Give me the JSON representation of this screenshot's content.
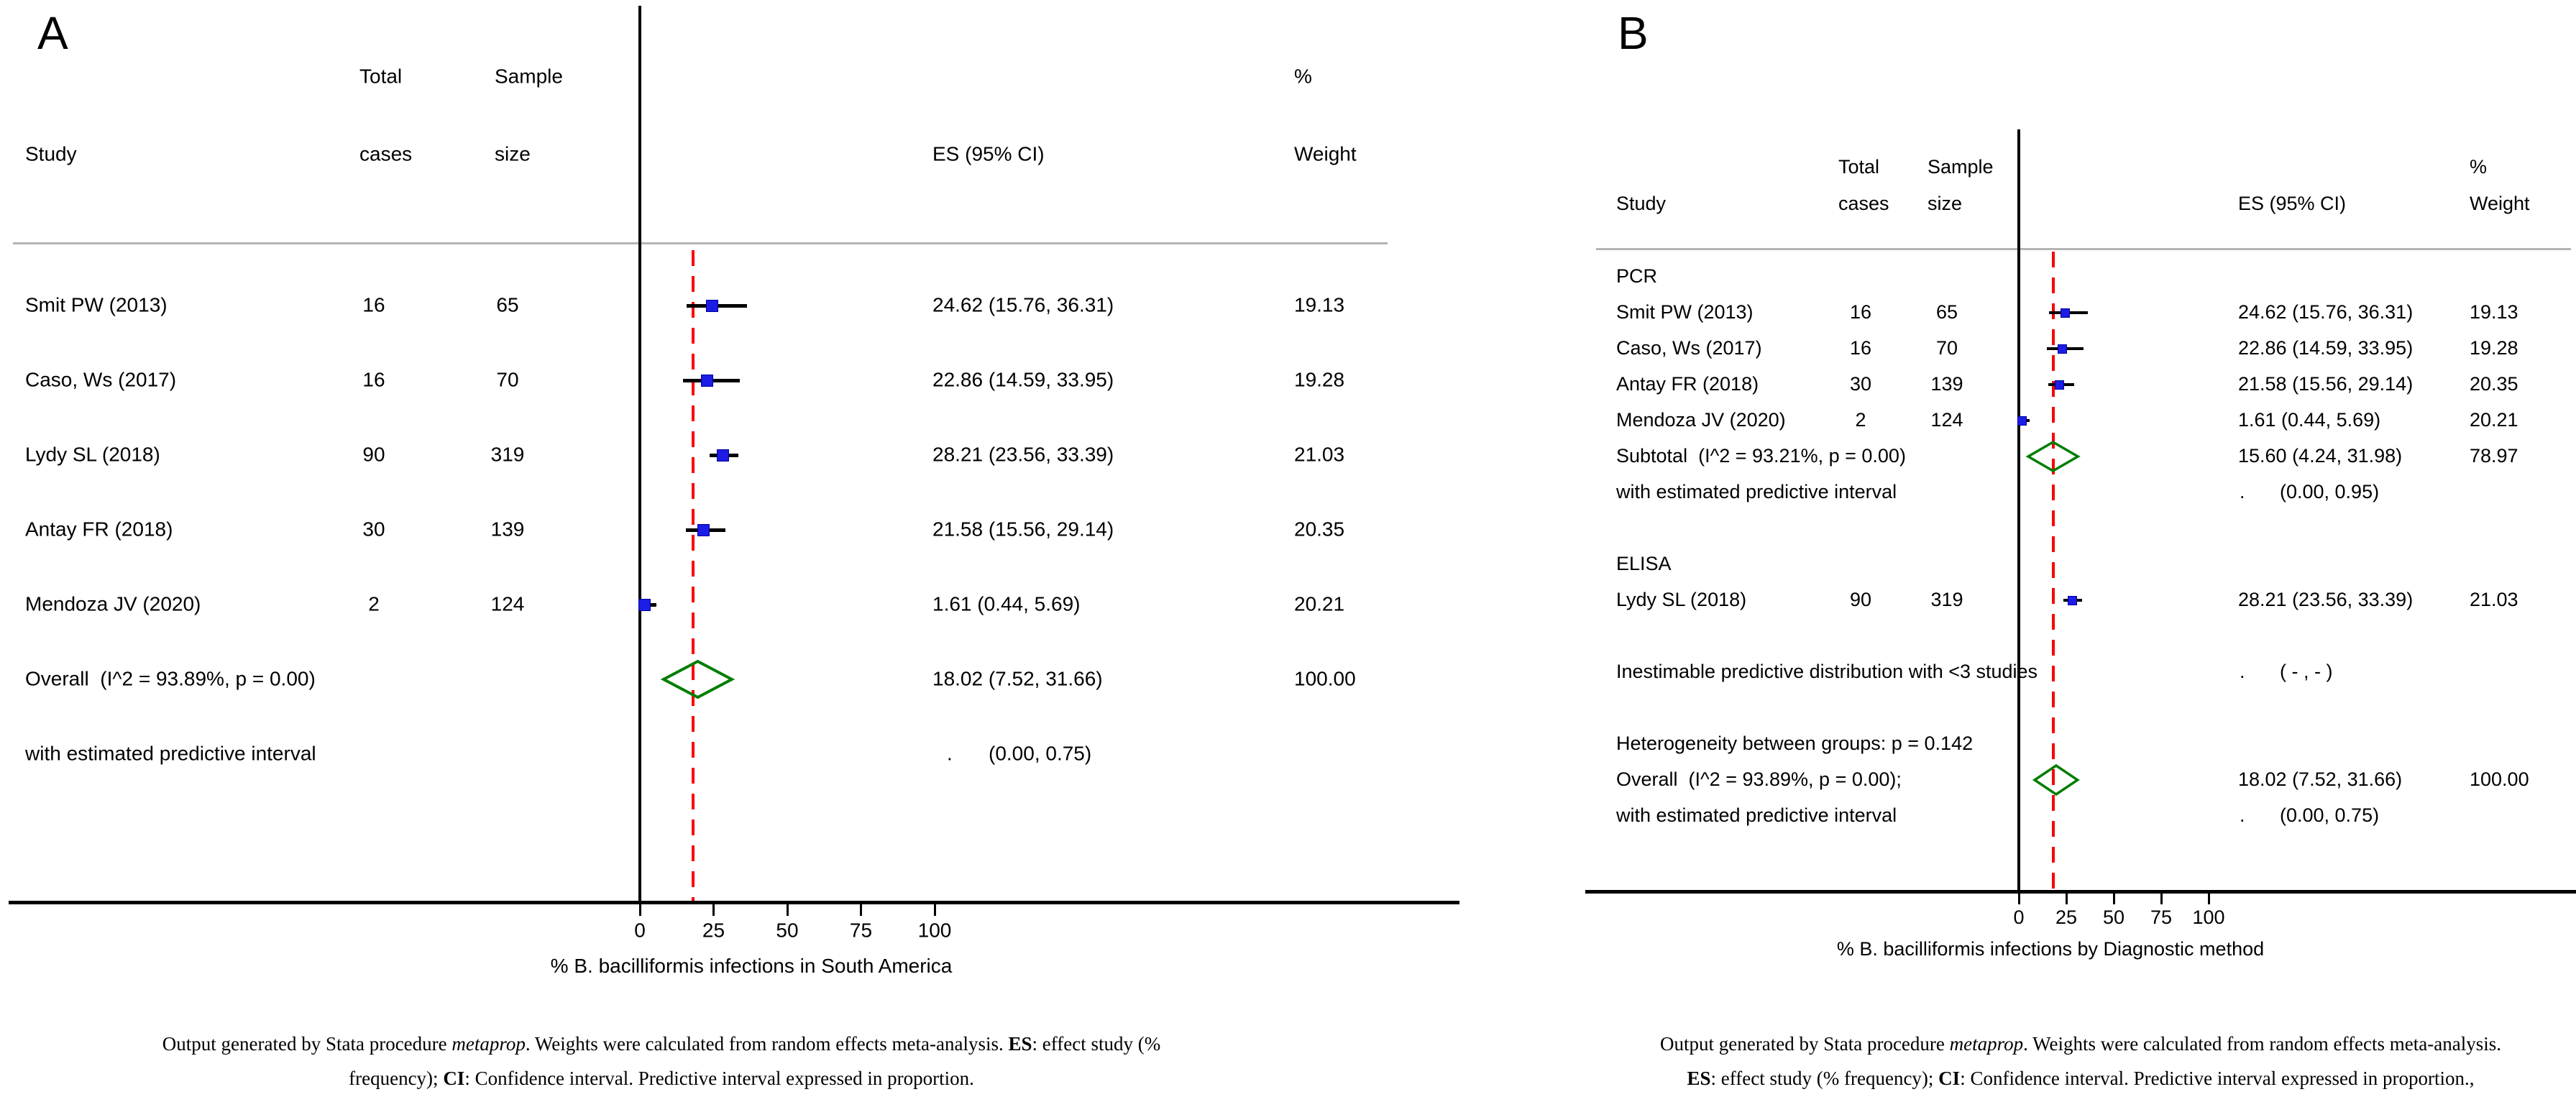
{
  "colors": {
    "marker_blue": "#1c1ce6",
    "marker_blue_edge": "#00009c",
    "diamond_green": "#007d00",
    "reference_red": "#fb0100",
    "separator_gray": "#b4b4b4",
    "axis_black": "#000000",
    "background": "#ffffff"
  },
  "panels": [
    {
      "key": "A",
      "letter": "A",
      "columns": {
        "col_pct": "%",
        "col_total": "Total",
        "col_sample": "Sample",
        "col_study": "Study",
        "col_cases": "cases",
        "col_size": "size",
        "col_es": "ES (95% CI)",
        "col_weight": "Weight"
      },
      "overall_es": 18.02,
      "axis": {
        "ticks": [
          "0",
          "25",
          "50",
          "75",
          "100"
        ],
        "tick_values": [
          0,
          25,
          50,
          75,
          100
        ],
        "title": "% B. bacilliformis infections in South America"
      },
      "rows": [
        {
          "type": "study",
          "label": "Smit PW (2013)",
          "cases": "16",
          "size": "65",
          "es_text": "24.62 (15.76, 36.31)",
          "weight": "19.13",
          "es": 24.62,
          "lo": 15.76,
          "hi": 36.31
        },
        {
          "type": "study",
          "label": "Caso, Ws (2017)",
          "cases": "16",
          "size": "70",
          "es_text": "22.86 (14.59, 33.95)",
          "weight": "19.28",
          "es": 22.86,
          "lo": 14.59,
          "hi": 33.95
        },
        {
          "type": "study",
          "label": "Lydy SL (2018)",
          "cases": "90",
          "size": "319",
          "es_text": "28.21 (23.56, 33.39)",
          "weight": "21.03",
          "es": 28.21,
          "lo": 23.56,
          "hi": 33.39
        },
        {
          "type": "study",
          "label": "Antay FR (2018)",
          "cases": "30",
          "size": "139",
          "es_text": "21.58 (15.56, 29.14)",
          "weight": "20.35",
          "es": 21.58,
          "lo": 15.56,
          "hi": 29.14
        },
        {
          "type": "study",
          "label": "Mendoza JV (2020)",
          "cases": "2",
          "size": "124",
          "es_text": "1.61 (0.44, 5.69)",
          "weight": "20.21",
          "es": 1.61,
          "lo": 0.44,
          "hi": 5.69
        },
        {
          "type": "diamond",
          "label": "Overall  (I^2 = 93.89%, p = 0.00)",
          "es_text": "18.02 (7.52, 31.66)",
          "weight": "100.00",
          "es": 18.02,
          "lo": 7.52,
          "hi": 31.66
        },
        {
          "type": "pred",
          "label": "with estimated predictive interval",
          "es_dot": ".",
          "es_ci": "(0.00, 0.75)"
        }
      ],
      "footnote": {
        "line1": [
          {
            "t": "Output generated by Stata procedure "
          },
          {
            "t": "metaprop",
            "s": "i"
          },
          {
            "t": ". Weights were calculated from random effects meta-analysis. "
          },
          {
            "t": "ES",
            "s": "b"
          },
          {
            "t": ": effect study (%"
          }
        ],
        "line2": [
          {
            "t": "frequency); "
          },
          {
            "t": "CI",
            "s": "b"
          },
          {
            "t": ": Confidence interval. Predictive interval expressed in proportion."
          }
        ]
      }
    },
    {
      "key": "B",
      "letter": "B",
      "columns": {
        "col_pct": "%",
        "col_total": "Total",
        "col_sample": "Sample",
        "col_study": "Study",
        "col_cases": "cases",
        "col_size": "size",
        "col_es": "ES (95% CI)",
        "col_weight": "Weight"
      },
      "overall_es": 18.02,
      "axis": {
        "ticks": [
          "0",
          "25",
          "50",
          "75",
          "100"
        ],
        "tick_values": [
          0,
          25,
          50,
          75,
          100
        ],
        "title": "% B. bacilliformis infections by Diagnostic method"
      },
      "rows": [
        {
          "type": "group",
          "label": "PCR"
        },
        {
          "type": "study",
          "label": "Smit PW (2013)",
          "cases": "16",
          "size": "65",
          "es_text": "24.62 (15.76, 36.31)",
          "weight": "19.13",
          "es": 24.62,
          "lo": 15.76,
          "hi": 36.31
        },
        {
          "type": "study",
          "label": "Caso, Ws (2017)",
          "cases": "16",
          "size": "70",
          "es_text": "22.86 (14.59, 33.95)",
          "weight": "19.28",
          "es": 22.86,
          "lo": 14.59,
          "hi": 33.95
        },
        {
          "type": "study",
          "label": "Antay FR (2018)",
          "cases": "30",
          "size": "139",
          "es_text": "21.58 (15.56, 29.14)",
          "weight": "20.35",
          "es": 21.58,
          "lo": 15.56,
          "hi": 29.14
        },
        {
          "type": "study",
          "label": "Mendoza JV (2020)",
          "cases": "2",
          "size": "124",
          "es_text": "1.61 (0.44, 5.69)",
          "weight": "20.21",
          "es": 1.61,
          "lo": 0.44,
          "hi": 5.69
        },
        {
          "type": "diamond",
          "label": "Subtotal  (I^2 = 93.21%, p = 0.00)",
          "es_text": "15.60 (4.24, 31.98)",
          "weight": "78.97",
          "es": 15.6,
          "lo": 4.24,
          "hi": 31.98
        },
        {
          "type": "pred",
          "label": "with estimated predictive interval",
          "es_dot": ".",
          "es_ci": "(0.00, 0.95)"
        },
        {
          "type": "blank"
        },
        {
          "type": "group",
          "label": "ELISA"
        },
        {
          "type": "study",
          "label": "Lydy SL (2018)",
          "cases": "90",
          "size": "319",
          "es_text": "28.21 (23.56, 33.39)",
          "weight": "21.03",
          "es": 28.21,
          "lo": 23.56,
          "hi": 33.39
        },
        {
          "type": "blank"
        },
        {
          "type": "pred",
          "label": "Inestimable predictive distribution with <3 studies",
          "es_dot": ".",
          "es_ci": "( - , - )"
        },
        {
          "type": "blank"
        },
        {
          "type": "text",
          "label": "Heterogeneity between groups: p = 0.142"
        },
        {
          "type": "diamond",
          "label": "Overall  (I^2 = 93.89%, p = 0.00);",
          "es_text": "18.02 (7.52, 31.66)",
          "weight": "100.00",
          "es": 18.02,
          "lo": 7.52,
          "hi": 31.66
        },
        {
          "type": "pred",
          "label": "with estimated predictive interval",
          "es_dot": ".",
          "es_ci": "(0.00, 0.75)"
        }
      ],
      "footnote": {
        "line1": [
          {
            "t": "Output generated by Stata procedure "
          },
          {
            "t": "metaprop",
            "s": "i"
          },
          {
            "t": ". Weights were calculated from random effects meta-analysis."
          }
        ],
        "line2": [
          {
            "t": "ES",
            "s": "b"
          },
          {
            "t": ": effect study (% frequency); "
          },
          {
            "t": "CI",
            "s": "b"
          },
          {
            "t": ": Confidence interval. Predictive interval expressed in proportion.,"
          }
        ]
      }
    }
  ],
  "chart_data": [
    {
      "type": "scatter",
      "subtype": "forest-plot",
      "panel": "A",
      "xlabel": "% B. bacilliformis infections in South America",
      "xlim": [
        0,
        100
      ],
      "x_ticks": [
        0,
        25,
        50,
        75,
        100
      ],
      "reference_line_at": 18.02,
      "studies": [
        {
          "label": "Smit PW (2013)",
          "total_cases": 16,
          "sample_size": 65,
          "es": 24.62,
          "ci_low": 15.76,
          "ci_high": 36.31,
          "weight_pct": 19.13
        },
        {
          "label": "Caso, Ws (2017)",
          "total_cases": 16,
          "sample_size": 70,
          "es": 22.86,
          "ci_low": 14.59,
          "ci_high": 33.95,
          "weight_pct": 19.28
        },
        {
          "label": "Lydy SL (2018)",
          "total_cases": 90,
          "sample_size": 319,
          "es": 28.21,
          "ci_low": 23.56,
          "ci_high": 33.39,
          "weight_pct": 21.03
        },
        {
          "label": "Antay FR (2018)",
          "total_cases": 30,
          "sample_size": 139,
          "es": 21.58,
          "ci_low": 15.56,
          "ci_high": 29.14,
          "weight_pct": 20.35
        },
        {
          "label": "Mendoza JV (2020)",
          "total_cases": 2,
          "sample_size": 124,
          "es": 1.61,
          "ci_low": 0.44,
          "ci_high": 5.69,
          "weight_pct": 20.21
        }
      ],
      "overall": {
        "es": 18.02,
        "ci_low": 7.52,
        "ci_high": 31.66,
        "weight_pct": 100.0,
        "I2": "93.89%",
        "p": "0.00"
      },
      "predictive_interval": {
        "low": 0.0,
        "high": 0.75
      }
    },
    {
      "type": "scatter",
      "subtype": "forest-plot",
      "panel": "B",
      "xlabel": "% B. bacilliformis infections by Diagnostic method",
      "xlim": [
        0,
        100
      ],
      "x_ticks": [
        0,
        25,
        50,
        75,
        100
      ],
      "reference_line_at": 18.02,
      "groups": [
        {
          "name": "PCR",
          "studies": [
            {
              "label": "Smit PW (2013)",
              "total_cases": 16,
              "sample_size": 65,
              "es": 24.62,
              "ci_low": 15.76,
              "ci_high": 36.31,
              "weight_pct": 19.13
            },
            {
              "label": "Caso, Ws (2017)",
              "total_cases": 16,
              "sample_size": 70,
              "es": 22.86,
              "ci_low": 14.59,
              "ci_high": 33.95,
              "weight_pct": 19.28
            },
            {
              "label": "Antay FR (2018)",
              "total_cases": 30,
              "sample_size": 139,
              "es": 21.58,
              "ci_low": 15.56,
              "ci_high": 29.14,
              "weight_pct": 20.35
            },
            {
              "label": "Mendoza JV (2020)",
              "total_cases": 2,
              "sample_size": 124,
              "es": 1.61,
              "ci_low": 0.44,
              "ci_high": 5.69,
              "weight_pct": 20.21
            }
          ],
          "subtotal": {
            "es": 15.6,
            "ci_low": 4.24,
            "ci_high": 31.98,
            "weight_pct": 78.97,
            "I2": "93.21%",
            "p": "0.00"
          },
          "predictive_interval": {
            "low": 0.0,
            "high": 0.95
          }
        },
        {
          "name": "ELISA",
          "studies": [
            {
              "label": "Lydy SL (2018)",
              "total_cases": 90,
              "sample_size": 319,
              "es": 28.21,
              "ci_low": 23.56,
              "ci_high": 33.39,
              "weight_pct": 21.03
            }
          ],
          "note": "Inestimable predictive distribution with <3 studies"
        }
      ],
      "heterogeneity_between_groups_p": 0.142,
      "overall": {
        "es": 18.02,
        "ci_low": 7.52,
        "ci_high": 31.66,
        "weight_pct": 100.0,
        "I2": "93.89%",
        "p": "0.00"
      },
      "predictive_interval": {
        "low": 0.0,
        "high": 0.75
      }
    }
  ]
}
